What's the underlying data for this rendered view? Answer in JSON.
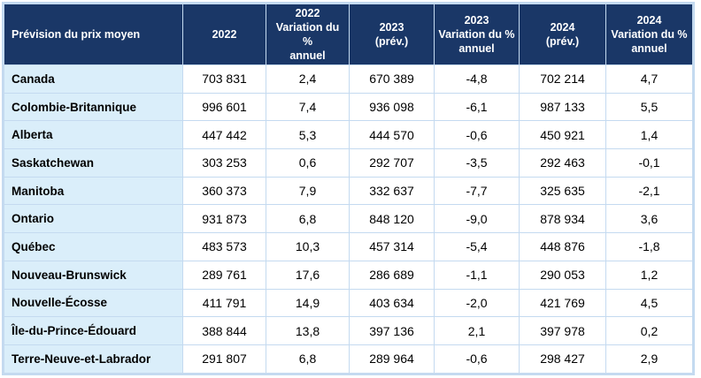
{
  "table": {
    "headers": [
      "Prévision du prix moyen",
      "2022",
      "2022 Variation du % annuel",
      "2023 (prév.)",
      "2023 Variation du % annuel",
      "2024 (prév.)",
      "2024 Variation du % annuel"
    ],
    "header_lines": [
      [
        "Prévision du prix moyen"
      ],
      [
        "2022"
      ],
      [
        "2022",
        "Variation du %",
        "annuel"
      ],
      [
        "2023",
        "(prév.)"
      ],
      [
        "2023",
        "Variation du %",
        "annuel"
      ],
      [
        "2024",
        "(prév.)"
      ],
      [
        "2024",
        "Variation du %",
        "annuel"
      ]
    ],
    "rows": [
      [
        "Canada",
        "703 831",
        "2,4",
        "670 389",
        "-4,8",
        "702 214",
        "4,7"
      ],
      [
        "Colombie-Britannique",
        "996 601",
        "7,4",
        "936 098",
        "-6,1",
        "987 133",
        "5,5"
      ],
      [
        "Alberta",
        "447 442",
        "5,3",
        "444 570",
        "-0,6",
        "450 921",
        "1,4"
      ],
      [
        "Saskatchewan",
        "303 253",
        "0,6",
        "292 707",
        "-3,5",
        "292 463",
        "-0,1"
      ],
      [
        "Manitoba",
        "360 373",
        "7,9",
        "332 637",
        "-7,7",
        "325 635",
        "-2,1"
      ],
      [
        "Ontario",
        "931 873",
        "6,8",
        "848 120",
        "-9,0",
        "878 934",
        "3,6"
      ],
      [
        "Québec",
        "483 573",
        "10,3",
        "457 314",
        "-5,4",
        "448 876",
        "-1,8"
      ],
      [
        "Nouveau-Brunswick",
        "289 761",
        "17,6",
        "286 689",
        "-1,1",
        "290 053",
        "1,2"
      ],
      [
        "Nouvelle-Écosse",
        "411 791",
        "14,9",
        "403 634",
        "-2,0",
        "421 769",
        "4,5"
      ],
      [
        "Île-du-Prince-Édouard",
        "388 844",
        "13,8",
        "397 136",
        "2,1",
        "397 978",
        "0,2"
      ],
      [
        "Terre-Neuve-et-Labrador",
        "291 807",
        "6,8",
        "289 964",
        "-0,6",
        "298 427",
        "2,9"
      ]
    ]
  },
  "colors": {
    "header_bg": "#1a3767",
    "region_bg": "#daeefa",
    "border": "#c4daf0"
  }
}
